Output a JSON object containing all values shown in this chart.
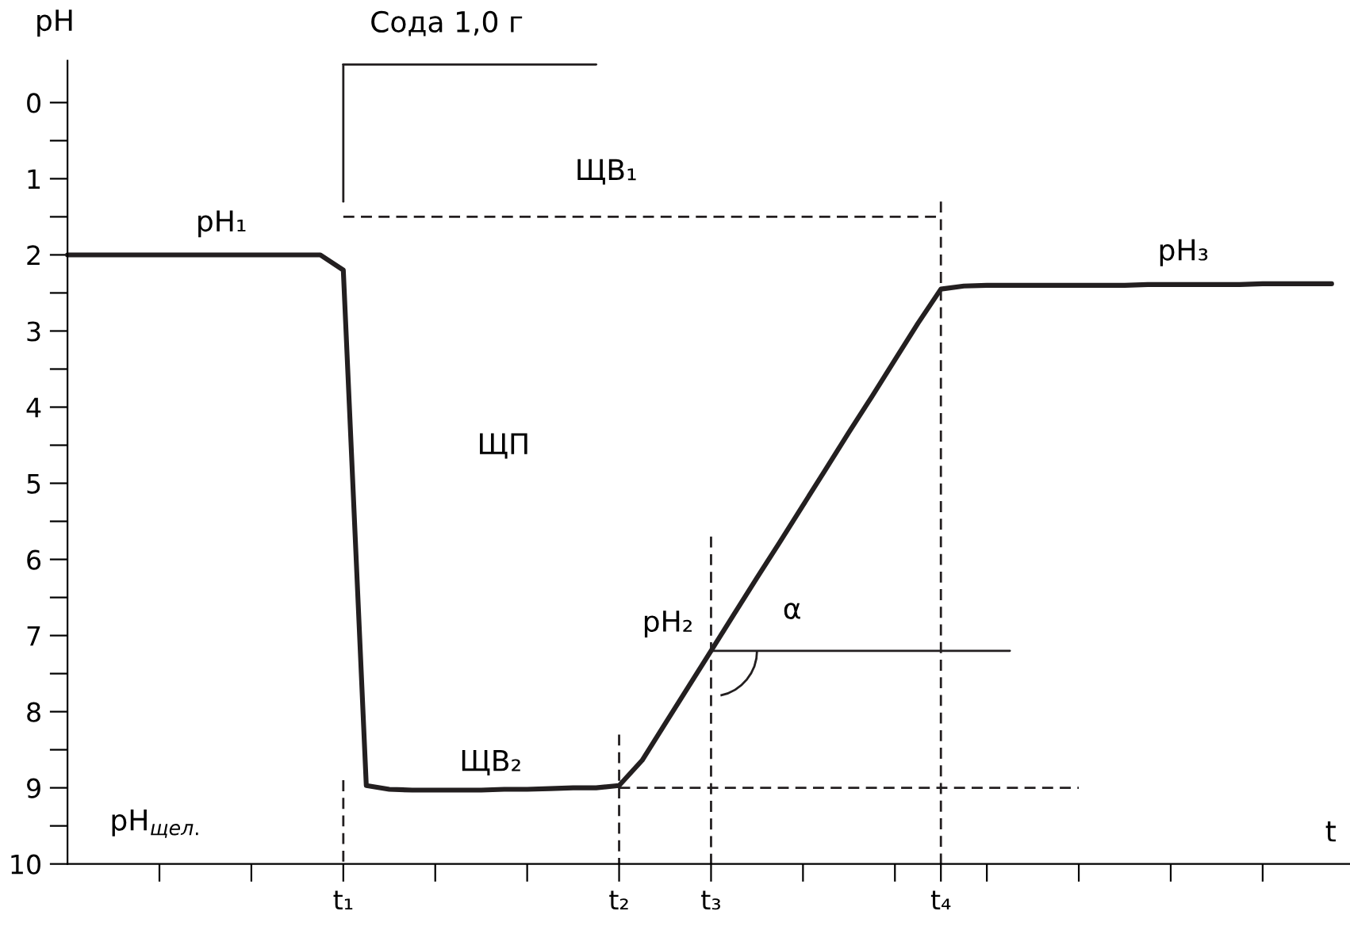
{
  "chart_data": {
    "type": "line",
    "ylabel": "pH",
    "xlabel": "t",
    "categories": [
      null,
      null,
      null,
      null,
      null,
      null,
      null,
      null,
      null,
      null,
      null,
      null,
      "t₁",
      null,
      null,
      null,
      null,
      null,
      null,
      null,
      null,
      null,
      null,
      null,
      "t₂",
      null,
      null,
      null,
      "t₃",
      null,
      null,
      null,
      null,
      null,
      null,
      null,
      null,
      null,
      "t₄",
      null,
      null,
      null,
      null,
      null,
      null,
      null,
      null,
      null,
      null,
      null,
      null,
      null,
      null,
      null,
      null,
      null
    ],
    "ylim": [
      10,
      -0.55
    ],
    "yticks": [
      0,
      {
        "value": 0.5,
        "label": null
      },
      1,
      {
        "value": 1.5,
        "label": null
      },
      2,
      {
        "value": 2.5,
        "label": null
      },
      3,
      {
        "value": 3.5,
        "label": null
      },
      4,
      {
        "value": 4.5,
        "label": null
      },
      5,
      {
        "value": 5.5,
        "label": null
      },
      6,
      {
        "value": 6.5,
        "label": null
      },
      7,
      {
        "value": 7.5,
        "label": null
      },
      8,
      {
        "value": 8.5,
        "label": null
      },
      9,
      {
        "value": 9.5,
        "label": null
      },
      10
    ],
    "grid": false,
    "legend": false,
    "marker": "none",
    "series": [
      {
        "color": "#231f20",
        "line_style": "solid",
        "values": [
          2.0,
          2.0,
          2.0,
          2.0,
          2.0,
          2.0,
          2.0,
          2.0,
          2.0,
          2.0,
          2.0,
          2.0,
          2.2,
          8.97,
          9.02,
          9.03,
          9.03,
          9.03,
          9.03,
          9.02,
          9.02,
          9.01,
          9.0,
          9.0,
          8.97,
          8.64,
          8.16,
          7.68,
          7.2,
          6.72,
          6.24,
          5.77,
          5.29,
          4.81,
          4.33,
          3.86,
          3.38,
          2.9,
          2.45,
          2.41,
          2.4,
          2.4,
          2.4,
          2.4,
          2.4,
          2.4,
          2.4,
          2.39,
          2.39,
          2.39,
          2.39,
          2.39,
          2.38,
          2.38,
          2.38,
          2.38
        ]
      },
      {
        "color": "#231f20",
        "line_style": "solid",
        "values": [
          null,
          null,
          null,
          null,
          null,
          null,
          null,
          null,
          null,
          null,
          null,
          null,
          -0.5,
          -0.5,
          -0.5,
          -0.5,
          -0.5,
          -0.5,
          -0.5,
          -0.5,
          -0.5,
          -0.5,
          -0.5,
          -0.5,
          null,
          null,
          null,
          null,
          null,
          null,
          null,
          null,
          null,
          null,
          null,
          null,
          null,
          null,
          null,
          null,
          null,
          null,
          null,
          null,
          null,
          null,
          null,
          null,
          null,
          null,
          null,
          null,
          null,
          null,
          null,
          null
        ]
      },
      {
        "color": "#231f20",
        "line_style": "solid",
        "x": [
          "t₁",
          "t₁"
        ],
        "values": [
          1.3,
          -0.5
        ]
      },
      {
        "color": "#231f20",
        "line_style": "dashed",
        "values": [
          null,
          null,
          null,
          null,
          null,
          null,
          null,
          null,
          null,
          null,
          null,
          null,
          1.5,
          1.5,
          1.5,
          1.5,
          1.5,
          1.5,
          1.5,
          1.5,
          1.5,
          1.5,
          1.5,
          1.5,
          1.5,
          1.5,
          1.5,
          1.5,
          1.5,
          1.5,
          1.5,
          1.5,
          1.5,
          1.5,
          1.5,
          1.5,
          1.5,
          1.5,
          1.5,
          null,
          null,
          null,
          null,
          null,
          null,
          null,
          null,
          null,
          null,
          null,
          null,
          null,
          null,
          null,
          null,
          null
        ]
      },
      {
        "color": "#231f20",
        "line_style": "dashed",
        "x": [
          "t₄",
          "t₄"
        ],
        "values": [
          1.3,
          10
        ]
      },
      {
        "color": "#231f20",
        "line_style": "dashed",
        "x": [
          "t₁",
          "t₁"
        ],
        "values": [
          8.9,
          10
        ]
      },
      {
        "color": "#231f20",
        "line_style": "dashed",
        "x": [
          "t₂",
          "t₂"
        ],
        "values": [
          8.3,
          10
        ]
      },
      {
        "color": "#231f20",
        "line_style": "dashed",
        "x": [
          "t₃",
          "t₃"
        ],
        "values": [
          5.7,
          10
        ]
      },
      {
        "color": "#231f20",
        "line_style": "dashed",
        "values": [
          null,
          null,
          null,
          null,
          null,
          null,
          null,
          null,
          null,
          null,
          null,
          null,
          null,
          null,
          null,
          null,
          null,
          null,
          null,
          null,
          null,
          null,
          null,
          null,
          9.0,
          9.0,
          9.0,
          9.0,
          9.0,
          9.0,
          9.0,
          9.0,
          9.0,
          9.0,
          9.0,
          9.0,
          9.0,
          9.0,
          9.0,
          9.0,
          9.0,
          9.0,
          9.0,
          9.0,
          9.0,
          null,
          null,
          null,
          null,
          null,
          null,
          null,
          null,
          null,
          null,
          null
        ]
      },
      {
        "color": "#231f20",
        "line_style": "solid",
        "values": [
          null,
          null,
          null,
          null,
          null,
          null,
          null,
          null,
          null,
          null,
          null,
          null,
          null,
          null,
          null,
          null,
          null,
          null,
          null,
          null,
          null,
          null,
          null,
          null,
          null,
          null,
          null,
          null,
          7.2,
          7.2,
          7.2,
          7.2,
          7.2,
          7.2,
          7.2,
          7.2,
          7.2,
          7.2,
          7.2,
          7.2,
          7.2,
          7.2,
          null,
          null,
          null,
          null,
          null,
          null,
          null,
          null,
          null,
          null,
          null,
          null,
          null,
          null
        ]
      }
    ],
    "annotations": [
      {
        "text": "Сода 1,0 г",
        "x": "t₁",
        "y": -0.5
      },
      {
        "text": "pH₁",
        "y": 2.0
      },
      {
        "text": "ЩВ₁",
        "y": 1.5
      },
      {
        "text": "pH₃",
        "y": 2.38
      },
      "ЩП",
      {
        "text": "pH₂",
        "x": "t₃",
        "y": 7.2
      },
      "α",
      {
        "text": "ЩВ₂",
        "y": 9.03
      },
      "pH$_{щел.}$"
    ]
  }
}
